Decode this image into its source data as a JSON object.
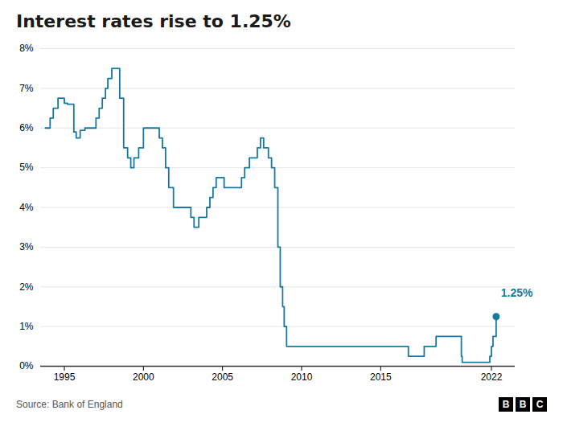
{
  "chart_data": {
    "type": "step",
    "title": "Interest rates rise to 1.25%",
    "source": "Source: Bank of England",
    "logo": "BBC",
    "color": "#1878a0",
    "x": [
      1993.8,
      1994.1,
      1994.3,
      1994.6,
      1995,
      1995.2,
      1995.6,
      1995.75,
      1996,
      1996.3,
      1996.6,
      1997,
      1997.2,
      1997.4,
      1997.6,
      1997.75,
      1998,
      1998.3,
      1998.5,
      1998.75,
      1999,
      1999.2,
      1999.4,
      1999.7,
      2000,
      2000.4,
      2001,
      2001.2,
      2001.4,
      2001.6,
      2001.9,
      2002.4,
      2003,
      2003.2,
      2003.5,
      2003.75,
      2004,
      2004.2,
      2004.4,
      2004.6,
      2004.9,
      2005.1,
      2005.4,
      2005.8,
      2006,
      2006.2,
      2006.4,
      2006.7,
      2007,
      2007.2,
      2007.4,
      2007.6,
      2007.9,
      2008.1,
      2008.3,
      2008.5,
      2008.65,
      2008.8,
      2008.9,
      2009.05,
      2009.25,
      2010,
      2012,
      2014,
      2016,
      2016.6,
      2016.75,
      2017.6,
      2017.75,
      2018.4,
      2018.5,
      2019.5,
      2020,
      2020.1,
      2020.15,
      2021,
      2021.8,
      2021.9,
      2022,
      2022.1,
      2022.3
    ],
    "values": [
      6,
      6.25,
      6.5,
      6.75,
      6.625,
      6.6,
      5.9,
      5.75,
      5.94,
      6,
      6,
      6.25,
      6.5,
      6.75,
      7,
      7.25,
      7.5,
      7.5,
      6.75,
      5.5,
      5.25,
      5,
      5.25,
      5.5,
      6,
      6,
      5.75,
      5.5,
      5,
      4.5,
      4,
      4,
      3.75,
      3.5,
      3.75,
      3.75,
      4,
      4.25,
      4.5,
      4.75,
      4.75,
      4.5,
      4.5,
      4.5,
      4.5,
      4.75,
      5,
      5.25,
      5.25,
      5.5,
      5.75,
      5.5,
      5.25,
      5,
      4.5,
      3,
      2,
      1.5,
      1,
      0.5,
      0.5,
      0.5,
      0.5,
      0.5,
      0.5,
      0.5,
      0.25,
      0.25,
      0.5,
      0.5,
      0.75,
      0.75,
      0.75,
      0.25,
      0.1,
      0.1,
      0.1,
      0.25,
      0.5,
      0.75,
      1.25
    ],
    "xlim": [
      1993.5,
      2023.5
    ],
    "xticks": [
      1995,
      2000,
      2005,
      2010,
      2015,
      2022
    ],
    "ylim": [
      0,
      8
    ],
    "yticks": [
      {
        "value": 0,
        "label": "0%"
      },
      {
        "value": 1,
        "label": "1%"
      },
      {
        "value": 2,
        "label": "2%"
      },
      {
        "value": 3,
        "label": "3%"
      },
      {
        "value": 4,
        "label": "4%"
      },
      {
        "value": 5,
        "label": "5%"
      },
      {
        "value": 6,
        "label": "6%"
      },
      {
        "value": 7,
        "label": "7%"
      },
      {
        "value": 8,
        "label": "8%"
      }
    ],
    "grid": true,
    "points": [
      {
        "x": 2022.3,
        "y": 1.25,
        "color": "#1878a0"
      }
    ],
    "annotations": [
      {
        "text": "1.25%",
        "x": 2022.6,
        "y": 1.85,
        "color": "#1878a0"
      }
    ]
  }
}
